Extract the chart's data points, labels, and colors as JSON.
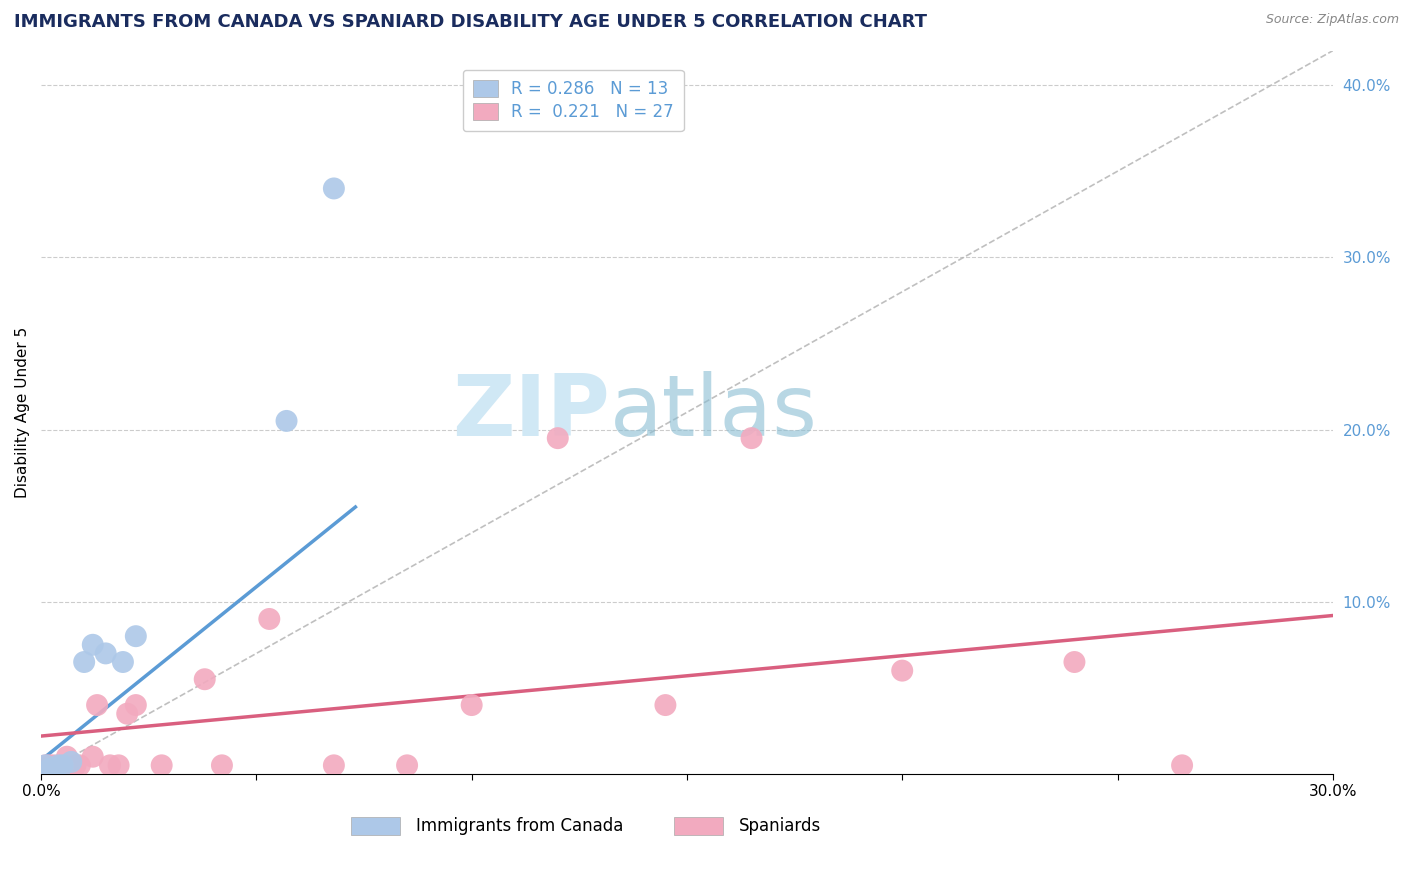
{
  "title": "IMMIGRANTS FROM CANADA VS SPANIARD DISABILITY AGE UNDER 5 CORRELATION CHART",
  "source_text": "Source: ZipAtlas.com",
  "ylabel": "Disability Age Under 5",
  "xlim": [
    0.0,
    0.3
  ],
  "ylim": [
    0.0,
    0.42
  ],
  "canada_R": 0.286,
  "canada_N": 13,
  "spain_R": 0.221,
  "spain_N": 27,
  "canada_color": "#adc8e8",
  "spain_color": "#f2aabf",
  "canada_line_color": "#5b9bd5",
  "spain_line_color": "#d95f7f",
  "background_color": "#ffffff",
  "grid_color": "#cccccc",
  "diag_line_color": "#b0b0b0",
  "canada_line_x": [
    0.0,
    0.073
  ],
  "canada_line_y": [
    0.008,
    0.155
  ],
  "spain_line_x": [
    0.0,
    0.3
  ],
  "spain_line_y": [
    0.022,
    0.092
  ],
  "canada_points_x": [
    0.001,
    0.002,
    0.003,
    0.004,
    0.005,
    0.007,
    0.01,
    0.012,
    0.015,
    0.019,
    0.022,
    0.057,
    0.068
  ],
  "canada_points_y": [
    0.005,
    0.003,
    0.003,
    0.005,
    0.005,
    0.007,
    0.065,
    0.075,
    0.07,
    0.065,
    0.08,
    0.205,
    0.34
  ],
  "spain_points_x": [
    0.001,
    0.002,
    0.003,
    0.004,
    0.005,
    0.006,
    0.008,
    0.009,
    0.012,
    0.013,
    0.016,
    0.018,
    0.02,
    0.022,
    0.028,
    0.038,
    0.042,
    0.053,
    0.068,
    0.085,
    0.1,
    0.12,
    0.145,
    0.165,
    0.2,
    0.24,
    0.265
  ],
  "spain_points_y": [
    0.005,
    0.005,
    0.005,
    0.003,
    0.002,
    0.01,
    0.005,
    0.005,
    0.01,
    0.04,
    0.005,
    0.005,
    0.035,
    0.04,
    0.005,
    0.055,
    0.005,
    0.09,
    0.005,
    0.005,
    0.04,
    0.195,
    0.04,
    0.195,
    0.06,
    0.065,
    0.005
  ],
  "watermark_color": "#d0e8f5",
  "title_color": "#1a2c5e",
  "source_color": "#888888",
  "tick_color_blue": "#5b9bd5",
  "title_fontsize": 13,
  "axis_label_fontsize": 11,
  "tick_fontsize": 11,
  "legend_fontsize": 12,
  "scatter_size": 250
}
